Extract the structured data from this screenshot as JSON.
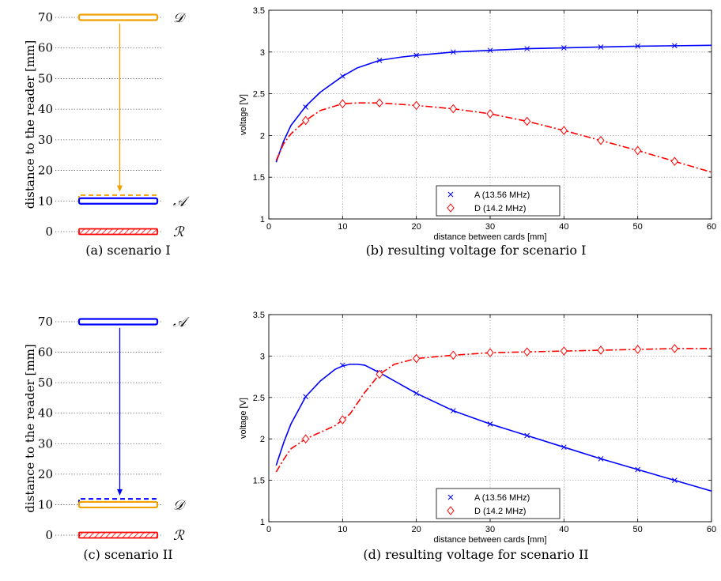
{
  "panels": {
    "a": {
      "caption": "(a) scenario I"
    },
    "b": {
      "caption": "(b) resulting voltage for scenario I"
    },
    "c": {
      "caption": "(c) scenario II"
    },
    "d": {
      "caption": "(d) resulting voltage for scenario II"
    }
  },
  "colors": {
    "blue": "#0000ff",
    "red": "#ff0000",
    "orange": "#f0a000",
    "grid": "#999999"
  },
  "chart_data": [
    {
      "id": "a",
      "type": "diagram",
      "ylabel": "distance to the reader [mm]",
      "yticks": [
        0,
        10,
        20,
        30,
        40,
        50,
        60,
        70
      ],
      "ylim": [
        0,
        70
      ],
      "cards": [
        {
          "label": "𝒟",
          "position": 70,
          "color": "orange",
          "style": "solid"
        },
        {
          "label": "",
          "position": 11,
          "color": "orange",
          "style": "dashed"
        },
        {
          "label": "𝒜",
          "position": 10,
          "color": "blue",
          "style": "solid"
        },
        {
          "label": "ℛ",
          "position": 0,
          "color": "red",
          "style": "hatched"
        }
      ],
      "arrow": {
        "from": 68,
        "to": 13,
        "color": "orange"
      }
    },
    {
      "id": "b",
      "type": "line",
      "xlabel": "distance between cards [mm]",
      "ylabel": "voltage [V]",
      "xlim": [
        0,
        60
      ],
      "ylim": [
        1,
        3.5
      ],
      "xticks": [
        0,
        10,
        20,
        30,
        40,
        50,
        60
      ],
      "yticks": [
        1,
        1.5,
        2,
        2.5,
        3,
        3.5
      ],
      "yticklabels": [
        "1",
        "1.5",
        "2",
        "2.5",
        "3",
        "3.5"
      ],
      "grid": true,
      "legend": "bottom-center",
      "series": [
        {
          "name": "A (13.56 MHz)",
          "color": "blue",
          "linestyle": "solid",
          "marker": "x",
          "curve": [
            [
              1,
              1.68
            ],
            [
              2,
              1.93
            ],
            [
              3,
              2.12
            ],
            [
              5,
              2.35
            ],
            [
              7,
              2.52
            ],
            [
              10,
              2.71
            ],
            [
              12,
              2.81
            ],
            [
              15,
              2.9
            ],
            [
              18,
              2.94
            ],
            [
              20,
              2.96
            ],
            [
              25,
              3.0
            ],
            [
              30,
              3.02
            ],
            [
              35,
              3.04
            ],
            [
              40,
              3.05
            ],
            [
              45,
              3.06
            ],
            [
              50,
              3.07
            ],
            [
              55,
              3.075
            ],
            [
              60,
              3.08
            ]
          ],
          "markers": [
            [
              5,
              2.34
            ],
            [
              10,
              2.71
            ],
            [
              15,
              2.9
            ],
            [
              20,
              2.96
            ],
            [
              25,
              3.0
            ],
            [
              30,
              3.02
            ],
            [
              35,
              3.04
            ],
            [
              40,
              3.05
            ],
            [
              45,
              3.06
            ],
            [
              50,
              3.07
            ],
            [
              55,
              3.075
            ]
          ]
        },
        {
          "name": "D (14.2 MHz)",
          "color": "red",
          "linestyle": "dashdot",
          "marker": "diamond",
          "curve": [
            [
              1,
              1.7
            ],
            [
              2,
              1.9
            ],
            [
              3,
              2.02
            ],
            [
              5,
              2.18
            ],
            [
              7,
              2.3
            ],
            [
              10,
              2.38
            ],
            [
              12,
              2.39
            ],
            [
              15,
              2.39
            ],
            [
              20,
              2.36
            ],
            [
              25,
              2.32
            ],
            [
              30,
              2.26
            ],
            [
              35,
              2.17
            ],
            [
              40,
              2.06
            ],
            [
              45,
              1.94
            ],
            [
              50,
              1.82
            ],
            [
              55,
              1.69
            ],
            [
              60,
              1.56
            ]
          ],
          "markers": [
            [
              5,
              2.18
            ],
            [
              10,
              2.38
            ],
            [
              15,
              2.39
            ],
            [
              20,
              2.36
            ],
            [
              25,
              2.32
            ],
            [
              30,
              2.26
            ],
            [
              35,
              2.17
            ],
            [
              40,
              2.06
            ],
            [
              45,
              1.94
            ],
            [
              50,
              1.82
            ],
            [
              55,
              1.69
            ]
          ]
        }
      ]
    },
    {
      "id": "c",
      "type": "diagram",
      "ylabel": "distance to the reader [mm]",
      "yticks": [
        0,
        10,
        20,
        30,
        40,
        50,
        60,
        70
      ],
      "ylim": [
        0,
        70
      ],
      "cards": [
        {
          "label": "𝒜",
          "position": 70,
          "color": "blue",
          "style": "solid"
        },
        {
          "label": "",
          "position": 11,
          "color": "blue",
          "style": "dashed"
        },
        {
          "label": "𝒟",
          "position": 10,
          "color": "orange",
          "style": "solid"
        },
        {
          "label": "ℛ",
          "position": 0,
          "color": "red",
          "style": "hatched"
        }
      ],
      "arrow": {
        "from": 68,
        "to": 13,
        "color": "blue"
      }
    },
    {
      "id": "d",
      "type": "line",
      "xlabel": "distance between cards [mm]",
      "ylabel": "voltage [V]",
      "xlim": [
        0,
        60
      ],
      "ylim": [
        1,
        3.5
      ],
      "xticks": [
        0,
        10,
        20,
        30,
        40,
        50,
        60
      ],
      "yticks": [
        1,
        1.5,
        2,
        2.5,
        3,
        3.5
      ],
      "yticklabels": [
        "1",
        "1.5",
        "2",
        "2.5",
        "3",
        "3.5"
      ],
      "grid": true,
      "legend": "bottom-center",
      "series": [
        {
          "name": "A (13.56 MHz)",
          "color": "blue",
          "linestyle": "solid",
          "marker": "x",
          "curve": [
            [
              1,
              1.68
            ],
            [
              2,
              1.95
            ],
            [
              3,
              2.18
            ],
            [
              5,
              2.51
            ],
            [
              7,
              2.7
            ],
            [
              9,
              2.84
            ],
            [
              10,
              2.88
            ],
            [
              11,
              2.9
            ],
            [
              12,
              2.9
            ],
            [
              13,
              2.89
            ],
            [
              15,
              2.8
            ],
            [
              17,
              2.7
            ],
            [
              20,
              2.55
            ],
            [
              25,
              2.34
            ],
            [
              30,
              2.18
            ],
            [
              35,
              2.04
            ],
            [
              40,
              1.9
            ],
            [
              45,
              1.76
            ],
            [
              50,
              1.63
            ],
            [
              55,
              1.5
            ],
            [
              60,
              1.37
            ]
          ],
          "markers": [
            [
              5,
              2.51
            ],
            [
              10,
              2.89
            ],
            [
              15,
              2.8
            ],
            [
              20,
              2.55
            ],
            [
              25,
              2.34
            ],
            [
              30,
              2.18
            ],
            [
              35,
              2.04
            ],
            [
              40,
              1.9
            ],
            [
              45,
              1.76
            ],
            [
              50,
              1.63
            ],
            [
              55,
              1.5
            ]
          ]
        },
        {
          "name": "D (14.2 MHz)",
          "color": "red",
          "linestyle": "dashdot",
          "marker": "diamond",
          "curve": [
            [
              1,
              1.6
            ],
            [
              2,
              1.75
            ],
            [
              3,
              1.88
            ],
            [
              5,
              2.0
            ],
            [
              7,
              2.08
            ],
            [
              9,
              2.16
            ],
            [
              10,
              2.23
            ],
            [
              11,
              2.3
            ],
            [
              13,
              2.56
            ],
            [
              15,
              2.78
            ],
            [
              17,
              2.9
            ],
            [
              20,
              2.97
            ],
            [
              25,
              3.01
            ],
            [
              30,
              3.04
            ],
            [
              35,
              3.05
            ],
            [
              40,
              3.06
            ],
            [
              45,
              3.07
            ],
            [
              50,
              3.08
            ],
            [
              55,
              3.09
            ],
            [
              60,
              3.09
            ]
          ],
          "markers": [
            [
              5,
              2.0
            ],
            [
              10,
              2.23
            ],
            [
              15,
              2.78
            ],
            [
              20,
              2.97
            ],
            [
              25,
              3.01
            ],
            [
              30,
              3.04
            ],
            [
              35,
              3.05
            ],
            [
              40,
              3.06
            ],
            [
              45,
              3.07
            ],
            [
              50,
              3.08
            ],
            [
              55,
              3.09
            ]
          ]
        }
      ]
    }
  ]
}
